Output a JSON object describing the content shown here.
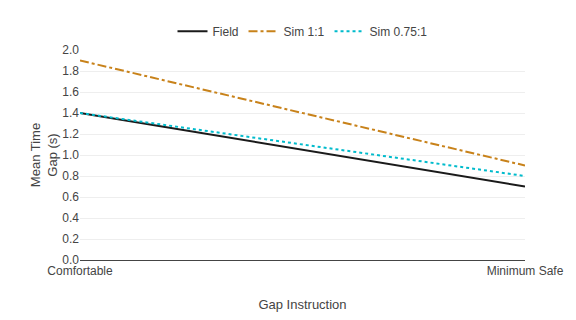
{
  "chart_data": {
    "type": "line",
    "categories": [
      "Comfortable",
      "Minimum Safe"
    ],
    "series": [
      {
        "name": "Field",
        "color": "#1a1a1a",
        "line_style": "solid",
        "values": [
          1.4,
          0.7
        ]
      },
      {
        "name": "Sim 1:1",
        "color": "#C8821A",
        "line_style": "dashdot",
        "values": [
          1.9,
          0.9
        ]
      },
      {
        "name": "Sim 0.75:1",
        "color": "#00BBCC",
        "line_style": "dotted",
        "values": [
          1.4,
          0.8
        ]
      }
    ],
    "xlabel": "Gap Instruction",
    "ylabel": "Mean Time\nGap (s)",
    "ylim": [
      0,
      2
    ],
    "yticks": [
      {
        "value": 0,
        "label": "0.0"
      },
      0.2,
      0.4,
      0.6,
      0.8,
      {
        "value": 1,
        "label": "1.0"
      },
      1.2,
      1.4,
      1.6,
      1.8,
      {
        "value": 2,
        "label": "2.0"
      }
    ],
    "grid": true,
    "legend": "top"
  }
}
